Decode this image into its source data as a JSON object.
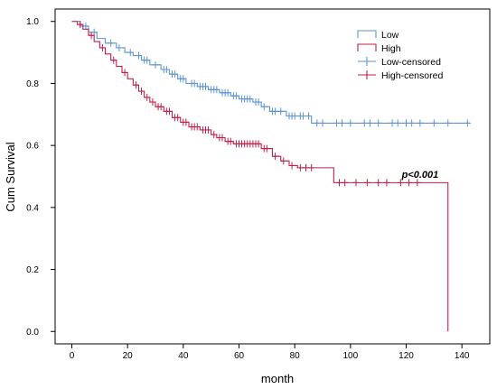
{
  "chart_data": {
    "type": "line",
    "xlabel": "month",
    "ylabel": "Cum Survival",
    "xlim": [
      -6,
      150
    ],
    "ylim": [
      -0.04,
      1.04
    ],
    "x_ticks": [
      0,
      20,
      40,
      60,
      80,
      100,
      120,
      140
    ],
    "y_ticks": [
      0.0,
      0.2,
      0.4,
      0.6,
      0.8,
      1.0
    ],
    "annotation": {
      "text": "p<0.001",
      "x": 125,
      "y": 0.495
    },
    "legend_position": "top-right",
    "legend": [
      {
        "label": "Low",
        "series": "Low",
        "style": "step"
      },
      {
        "label": "High",
        "series": "High",
        "style": "step"
      },
      {
        "label": "Low-censored",
        "series": "Low",
        "style": "censor"
      },
      {
        "label": "High-censored",
        "series": "High",
        "style": "censor"
      }
    ],
    "series": [
      {
        "name": "Low",
        "color": "#5b93d3",
        "steps": [
          [
            0,
            1.0
          ],
          [
            3,
            0.985
          ],
          [
            6,
            0.965
          ],
          [
            9,
            0.945
          ],
          [
            12,
            0.93
          ],
          [
            16,
            0.915
          ],
          [
            19,
            0.9
          ],
          [
            22,
            0.89
          ],
          [
            25,
            0.875
          ],
          [
            28,
            0.86
          ],
          [
            32,
            0.845
          ],
          [
            35,
            0.83
          ],
          [
            38,
            0.815
          ],
          [
            41,
            0.8
          ],
          [
            45,
            0.79
          ],
          [
            49,
            0.78
          ],
          [
            53,
            0.77
          ],
          [
            57,
            0.76
          ],
          [
            60,
            0.75
          ],
          [
            65,
            0.74
          ],
          [
            68,
            0.725
          ],
          [
            71,
            0.71
          ],
          [
            77,
            0.695
          ],
          [
            86,
            0.672
          ],
          [
            143,
            0.672
          ]
        ],
        "censored": [
          [
            5,
            0.985
          ],
          [
            8,
            0.965
          ],
          [
            14,
            0.93
          ],
          [
            17,
            0.915
          ],
          [
            21,
            0.9
          ],
          [
            24,
            0.89
          ],
          [
            26,
            0.875
          ],
          [
            27,
            0.875
          ],
          [
            30,
            0.86
          ],
          [
            33,
            0.845
          ],
          [
            34,
            0.845
          ],
          [
            36,
            0.83
          ],
          [
            37,
            0.83
          ],
          [
            39,
            0.815
          ],
          [
            40,
            0.815
          ],
          [
            43,
            0.8
          ],
          [
            44,
            0.8
          ],
          [
            46,
            0.79
          ],
          [
            47,
            0.79
          ],
          [
            48,
            0.79
          ],
          [
            50,
            0.78
          ],
          [
            51,
            0.78
          ],
          [
            52,
            0.78
          ],
          [
            54,
            0.77
          ],
          [
            55,
            0.77
          ],
          [
            56,
            0.77
          ],
          [
            58,
            0.76
          ],
          [
            59,
            0.76
          ],
          [
            61,
            0.75
          ],
          [
            62,
            0.75
          ],
          [
            63,
            0.75
          ],
          [
            64,
            0.75
          ],
          [
            66,
            0.74
          ],
          [
            67,
            0.74
          ],
          [
            69,
            0.725
          ],
          [
            72,
            0.71
          ],
          [
            73,
            0.71
          ],
          [
            75,
            0.71
          ],
          [
            78,
            0.695
          ],
          [
            79,
            0.695
          ],
          [
            80,
            0.695
          ],
          [
            82,
            0.695
          ],
          [
            83,
            0.695
          ],
          [
            85,
            0.695
          ],
          [
            88,
            0.672
          ],
          [
            90,
            0.672
          ],
          [
            95,
            0.672
          ],
          [
            97,
            0.672
          ],
          [
            100,
            0.672
          ],
          [
            105,
            0.672
          ],
          [
            107,
            0.672
          ],
          [
            110,
            0.672
          ],
          [
            115,
            0.672
          ],
          [
            117,
            0.672
          ],
          [
            120,
            0.672
          ],
          [
            122,
            0.672
          ],
          [
            125,
            0.672
          ],
          [
            130,
            0.672
          ],
          [
            135,
            0.672
          ],
          [
            142,
            0.672
          ]
        ]
      },
      {
        "name": "High",
        "color": "#c0204a",
        "steps": [
          [
            0,
            1.0
          ],
          [
            2,
            0.99
          ],
          [
            4,
            0.975
          ],
          [
            6,
            0.955
          ],
          [
            8,
            0.935
          ],
          [
            10,
            0.915
          ],
          [
            12,
            0.895
          ],
          [
            14,
            0.875
          ],
          [
            16,
            0.855
          ],
          [
            18,
            0.835
          ],
          [
            20,
            0.815
          ],
          [
            22,
            0.795
          ],
          [
            24,
            0.775
          ],
          [
            26,
            0.755
          ],
          [
            28,
            0.74
          ],
          [
            30,
            0.725
          ],
          [
            33,
            0.71
          ],
          [
            36,
            0.69
          ],
          [
            39,
            0.675
          ],
          [
            42,
            0.66
          ],
          [
            46,
            0.65
          ],
          [
            50,
            0.635
          ],
          [
            52,
            0.625
          ],
          [
            55,
            0.613
          ],
          [
            58,
            0.605
          ],
          [
            68,
            0.59
          ],
          [
            72,
            0.565
          ],
          [
            75,
            0.55
          ],
          [
            78,
            0.535
          ],
          [
            81,
            0.528
          ],
          [
            94,
            0.48
          ],
          [
            135,
            0.0
          ]
        ],
        "censored": [
          [
            3,
            0.99
          ],
          [
            7,
            0.955
          ],
          [
            11,
            0.915
          ],
          [
            15,
            0.875
          ],
          [
            19,
            0.835
          ],
          [
            23,
            0.795
          ],
          [
            25,
            0.775
          ],
          [
            27,
            0.755
          ],
          [
            29,
            0.74
          ],
          [
            31,
            0.725
          ],
          [
            32,
            0.725
          ],
          [
            34,
            0.71
          ],
          [
            35,
            0.71
          ],
          [
            37,
            0.69
          ],
          [
            38,
            0.69
          ],
          [
            40,
            0.675
          ],
          [
            41,
            0.675
          ],
          [
            43,
            0.66
          ],
          [
            44,
            0.66
          ],
          [
            45,
            0.66
          ],
          [
            47,
            0.65
          ],
          [
            48,
            0.65
          ],
          [
            49,
            0.65
          ],
          [
            51,
            0.635
          ],
          [
            53,
            0.625
          ],
          [
            54,
            0.625
          ],
          [
            56,
            0.613
          ],
          [
            57,
            0.613
          ],
          [
            59,
            0.605
          ],
          [
            60,
            0.605
          ],
          [
            61,
            0.605
          ],
          [
            62,
            0.605
          ],
          [
            63,
            0.605
          ],
          [
            64,
            0.605
          ],
          [
            65,
            0.605
          ],
          [
            66,
            0.605
          ],
          [
            67,
            0.605
          ],
          [
            69,
            0.59
          ],
          [
            70,
            0.59
          ],
          [
            73,
            0.565
          ],
          [
            76,
            0.55
          ],
          [
            79,
            0.535
          ],
          [
            82,
            0.528
          ],
          [
            84,
            0.528
          ],
          [
            86,
            0.528
          ],
          [
            96,
            0.48
          ],
          [
            98,
            0.48
          ],
          [
            102,
            0.48
          ],
          [
            106,
            0.48
          ],
          [
            110,
            0.48
          ],
          [
            113,
            0.48
          ],
          [
            118,
            0.48
          ],
          [
            121,
            0.48
          ],
          [
            124,
            0.48
          ]
        ]
      }
    ]
  }
}
